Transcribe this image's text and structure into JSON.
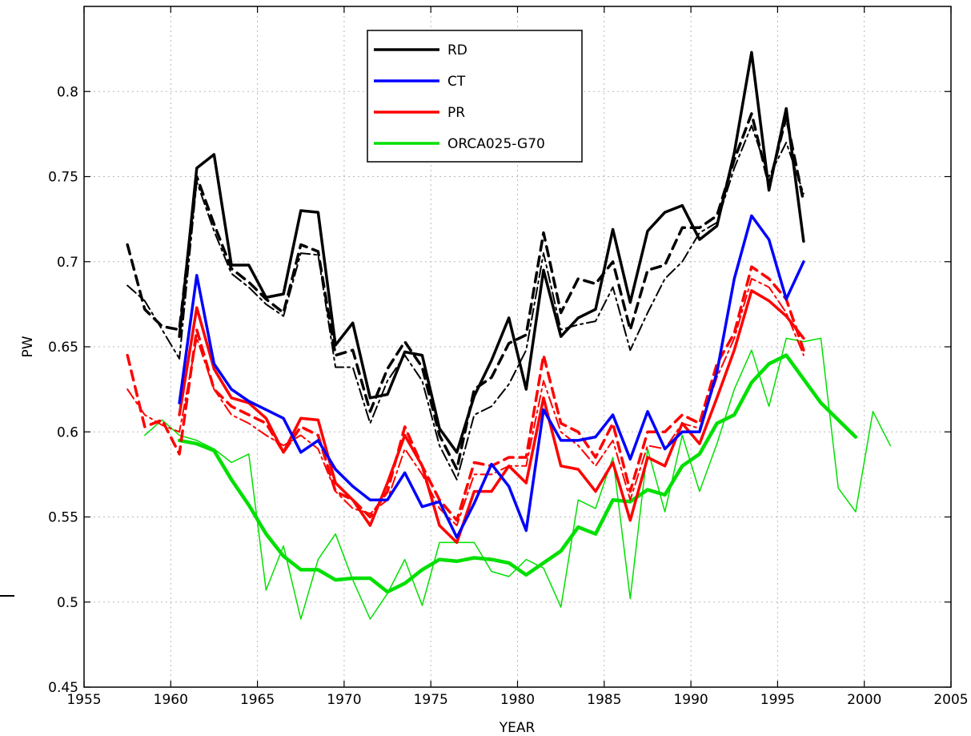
{
  "chart_data": {
    "type": "line",
    "title": "",
    "xlabel": "YEAR",
    "ylabel": "PW",
    "xlim": [
      1955,
      2005
    ],
    "ylim": [
      0.45,
      0.85
    ],
    "xticks": [
      1955,
      1960,
      1965,
      1970,
      1975,
      1980,
      1985,
      1990,
      1995,
      2000,
      2005
    ],
    "yticks": [
      0.45,
      0.5,
      0.55,
      0.6,
      0.65,
      0.7,
      0.75,
      0.8
    ],
    "xtick_labels": [
      "1955",
      "1960",
      "1965",
      "1970",
      "1975",
      "1980",
      "1985",
      "1990",
      "1995",
      "2000",
      "2005"
    ],
    "ytick_labels": [
      "0.45",
      "0.5",
      "0.55",
      "0.6",
      "0.65",
      "0.7",
      "0.75",
      "0.8"
    ],
    "grid": true,
    "legend_position": "top-center",
    "legend": [
      {
        "label": "RD",
        "color": "#000000"
      },
      {
        "label": "CT",
        "color": "#0000ff"
      },
      {
        "label": "PR",
        "color": "#ff0000"
      },
      {
        "label": "ORCA025-G70",
        "color": "#00e000"
      }
    ],
    "series": [
      {
        "name": "RD",
        "color": "#000000",
        "style": "solid",
        "width": 3.5,
        "x": [
          1960.5,
          1961.5,
          1962.5,
          1963.5,
          1964.5,
          1965.5,
          1966.5,
          1967.5,
          1968.5,
          1969.5,
          1970.5,
          1971.5,
          1972.5,
          1973.5,
          1974.5,
          1975.5,
          1976.5,
          1977.5,
          1978.5,
          1979.5,
          1980.5,
          1981.5,
          1982.5,
          1983.5,
          1984.5,
          1985.5,
          1986.5,
          1987.5,
          1988.5,
          1989.5,
          1990.5,
          1991.5,
          1992.5,
          1993.5,
          1994.5,
          1995.5,
          1996.5
        ],
        "y": [
          0.656,
          0.755,
          0.763,
          0.698,
          0.698,
          0.679,
          0.681,
          0.73,
          0.729,
          0.651,
          0.664,
          0.62,
          0.622,
          0.647,
          0.645,
          0.602,
          0.588,
          0.621,
          0.642,
          0.667,
          0.625,
          0.695,
          0.656,
          0.667,
          0.672,
          0.719,
          0.676,
          0.718,
          0.729,
          0.733,
          0.713,
          0.721,
          0.764,
          0.823,
          0.742,
          0.79,
          0.712
        ]
      },
      {
        "name": "",
        "color": "#000000",
        "style": "dashed",
        "width": 3.5,
        "x": [
          1957.5,
          1958.5,
          1959.5,
          1960.5,
          1961.5,
          1962.5,
          1963.5,
          1964.5,
          1965.5,
          1966.5,
          1967.5,
          1968.5,
          1969.5,
          1970.5,
          1971.5,
          1972.5,
          1973.5,
          1974.5,
          1975.5,
          1976.5,
          1977.5,
          1978.5,
          1979.5,
          1980.5,
          1981.5,
          1982.5,
          1983.5,
          1984.5,
          1985.5,
          1986.5,
          1987.5,
          1988.5,
          1989.5,
          1990.5,
          1991.5,
          1992.5,
          1993.5,
          1994.5,
          1995.5,
          1996.5
        ],
        "y": [
          0.71,
          0.672,
          0.662,
          0.66,
          0.75,
          0.722,
          0.696,
          0.688,
          0.678,
          0.67,
          0.71,
          0.706,
          0.645,
          0.648,
          0.612,
          0.637,
          0.653,
          0.638,
          0.598,
          0.578,
          0.625,
          0.632,
          0.652,
          0.657,
          0.717,
          0.67,
          0.69,
          0.687,
          0.7,
          0.66,
          0.695,
          0.698,
          0.72,
          0.72,
          0.727,
          0.76,
          0.787,
          0.745,
          0.785,
          0.735
        ]
      },
      {
        "name": "",
        "color": "#000000",
        "style": "dashdot",
        "width": 2,
        "x": [
          1957.5,
          1958.5,
          1959.5,
          1960.5,
          1961.5,
          1962.5,
          1963.5,
          1964.5,
          1965.5,
          1966.5,
          1967.5,
          1968.5,
          1969.5,
          1970.5,
          1971.5,
          1972.5,
          1973.5,
          1974.5,
          1975.5,
          1976.5,
          1977.5,
          1978.5,
          1979.5,
          1980.5,
          1981.5,
          1982.5,
          1983.5,
          1984.5,
          1985.5,
          1986.5,
          1987.5,
          1988.5,
          1989.5,
          1990.5,
          1991.5,
          1992.5,
          1993.5,
          1994.5,
          1995.5,
          1996.5
        ],
        "y": [
          0.686,
          0.677,
          0.66,
          0.643,
          0.747,
          0.718,
          0.693,
          0.685,
          0.675,
          0.668,
          0.705,
          0.704,
          0.638,
          0.638,
          0.605,
          0.63,
          0.645,
          0.63,
          0.592,
          0.572,
          0.61,
          0.615,
          0.628,
          0.648,
          0.705,
          0.66,
          0.663,
          0.665,
          0.685,
          0.648,
          0.67,
          0.69,
          0.7,
          0.717,
          0.723,
          0.755,
          0.78,
          0.75,
          0.77,
          0.74
        ]
      },
      {
        "name": "CT",
        "color": "#0000ff",
        "style": "solid",
        "width": 3.5,
        "x": [
          1960.5,
          1961.5,
          1962.5,
          1963.5,
          1964.5,
          1965.5,
          1966.5,
          1967.5,
          1968.5,
          1969.5,
          1970.5,
          1971.5,
          1972.5,
          1973.5,
          1974.5,
          1975.5,
          1976.5,
          1977.5,
          1978.5,
          1979.5,
          1980.5,
          1981.5,
          1982.5,
          1983.5,
          1984.5,
          1985.5,
          1986.5,
          1987.5,
          1988.5,
          1989.5,
          1990.5,
          1991.5,
          1992.5,
          1993.5,
          1994.5,
          1995.5,
          1996.5
        ],
        "y": [
          0.617,
          0.692,
          0.64,
          0.625,
          0.618,
          0.613,
          0.608,
          0.588,
          0.595,
          0.578,
          0.568,
          0.56,
          0.56,
          0.576,
          0.556,
          0.559,
          0.538,
          0.558,
          0.581,
          0.568,
          0.542,
          0.613,
          0.595,
          0.595,
          0.597,
          0.61,
          0.584,
          0.612,
          0.59,
          0.6,
          0.6,
          0.635,
          0.69,
          0.727,
          0.713,
          0.678,
          0.7
        ]
      },
      {
        "name": "PR",
        "color": "#ff0000",
        "style": "solid",
        "width": 3.5,
        "x": [
          1960.5,
          1961.5,
          1962.5,
          1963.5,
          1964.5,
          1965.5,
          1966.5,
          1967.5,
          1968.5,
          1969.5,
          1970.5,
          1971.5,
          1972.5,
          1973.5,
          1974.5,
          1975.5,
          1976.5,
          1977.5,
          1978.5,
          1979.5,
          1980.5,
          1981.5,
          1982.5,
          1983.5,
          1984.5,
          1985.5,
          1986.5,
          1987.5,
          1988.5,
          1989.5,
          1990.5,
          1991.5,
          1992.5,
          1993.5,
          1994.5,
          1995.5,
          1996.5
        ],
        "y": [
          0.61,
          0.673,
          0.637,
          0.62,
          0.617,
          0.608,
          0.588,
          0.608,
          0.607,
          0.57,
          0.56,
          0.545,
          0.57,
          0.598,
          0.58,
          0.545,
          0.535,
          0.565,
          0.565,
          0.58,
          0.57,
          0.62,
          0.58,
          0.578,
          0.565,
          0.582,
          0.548,
          0.585,
          0.58,
          0.605,
          0.593,
          0.62,
          0.648,
          0.683,
          0.677,
          0.668,
          0.655
        ]
      },
      {
        "name": "",
        "color": "#ff0000",
        "style": "dashed",
        "width": 3.5,
        "x": [
          1957.5,
          1958.5,
          1959.5,
          1960.5,
          1961.5,
          1962.5,
          1963.5,
          1964.5,
          1965.5,
          1966.5,
          1967.5,
          1968.5,
          1969.5,
          1970.5,
          1971.5,
          1972.5,
          1973.5,
          1974.5,
          1975.5,
          1976.5,
          1977.5,
          1978.5,
          1979.5,
          1980.5,
          1981.5,
          1982.5,
          1983.5,
          1984.5,
          1985.5,
          1986.5,
          1987.5,
          1988.5,
          1989.5,
          1990.5,
          1991.5,
          1992.5,
          1993.5,
          1994.5,
          1995.5,
          1996.5
        ],
        "y": [
          0.645,
          0.603,
          0.607,
          0.587,
          0.66,
          0.625,
          0.615,
          0.61,
          0.605,
          0.588,
          0.603,
          0.598,
          0.565,
          0.56,
          0.55,
          0.565,
          0.603,
          0.58,
          0.56,
          0.548,
          0.582,
          0.58,
          0.585,
          0.585,
          0.645,
          0.605,
          0.6,
          0.585,
          0.605,
          0.565,
          0.6,
          0.6,
          0.61,
          0.605,
          0.64,
          0.658,
          0.697,
          0.69,
          0.678,
          0.648
        ]
      },
      {
        "name": "",
        "color": "#ff0000",
        "style": "dashdot",
        "width": 2,
        "x": [
          1957.5,
          1958.5,
          1959.5,
          1960.5,
          1961.5,
          1962.5,
          1963.5,
          1964.5,
          1965.5,
          1966.5,
          1967.5,
          1968.5,
          1969.5,
          1970.5,
          1971.5,
          1972.5,
          1973.5,
          1974.5,
          1975.5,
          1976.5,
          1977.5,
          1978.5,
          1979.5,
          1980.5,
          1981.5,
          1982.5,
          1983.5,
          1984.5,
          1985.5,
          1986.5,
          1987.5,
          1988.5,
          1989.5,
          1990.5,
          1991.5,
          1992.5,
          1993.5,
          1994.5,
          1995.5,
          1996.5
        ],
        "y": [
          0.625,
          0.61,
          0.604,
          0.6,
          0.655,
          0.625,
          0.61,
          0.605,
          0.598,
          0.592,
          0.598,
          0.59,
          0.565,
          0.555,
          0.552,
          0.56,
          0.59,
          0.575,
          0.555,
          0.545,
          0.575,
          0.575,
          0.58,
          0.58,
          0.63,
          0.6,
          0.592,
          0.58,
          0.595,
          0.56,
          0.592,
          0.59,
          0.605,
          0.602,
          0.632,
          0.655,
          0.69,
          0.685,
          0.67,
          0.645
        ]
      },
      {
        "name": "ORCA025-G70",
        "color": "#00e000",
        "style": "solid",
        "width": 4.5,
        "x": [
          1960.5,
          1961.5,
          1962.5,
          1963.5,
          1964.5,
          1965.5,
          1966.5,
          1967.5,
          1968.5,
          1969.5,
          1970.5,
          1971.5,
          1972.5,
          1973.5,
          1974.5,
          1975.5,
          1976.5,
          1977.5,
          1978.5,
          1979.5,
          1980.5,
          1981.5,
          1982.5,
          1983.5,
          1984.5,
          1985.5,
          1986.5,
          1987.5,
          1988.5,
          1989.5,
          1990.5,
          1991.5,
          1992.5,
          1993.5,
          1994.5,
          1995.5,
          1996.5,
          1997.5,
          1998.5,
          1999.5
        ],
        "y": [
          0.595,
          0.593,
          0.589,
          0.572,
          0.557,
          0.54,
          0.527,
          0.519,
          0.519,
          0.513,
          0.514,
          0.514,
          0.506,
          0.511,
          0.519,
          0.525,
          0.524,
          0.526,
          0.525,
          0.523,
          0.516,
          0.523,
          0.53,
          0.544,
          0.54,
          0.56,
          0.559,
          0.566,
          0.563,
          0.58,
          0.587,
          0.605,
          0.61,
          0.629,
          0.64,
          0.645,
          0.631,
          0.617,
          0.607,
          0.597
        ]
      },
      {
        "name": "",
        "color": "#00e000",
        "style": "solid",
        "width": 1.5,
        "x": [
          1958.5,
          1959.5,
          1960.5,
          1961.5,
          1962.5,
          1963.5,
          1964.5,
          1965.5,
          1966.5,
          1967.5,
          1968.5,
          1969.5,
          1970.5,
          1971.5,
          1972.5,
          1973.5,
          1974.5,
          1975.5,
          1976.5,
          1977.5,
          1978.5,
          1979.5,
          1980.5,
          1981.5,
          1982.5,
          1983.5,
          1984.5,
          1985.5,
          1986.5,
          1987.5,
          1988.5,
          1989.5,
          1990.5,
          1991.5,
          1992.5,
          1993.5,
          1994.5,
          1995.5,
          1996.5,
          1997.5,
          1998.5,
          1999.5,
          2000.5,
          2001.5
        ],
        "y": [
          0.598,
          0.607,
          0.598,
          0.595,
          0.59,
          0.582,
          0.587,
          0.507,
          0.533,
          0.49,
          0.525,
          0.54,
          0.513,
          0.49,
          0.505,
          0.525,
          0.498,
          0.535,
          0.535,
          0.535,
          0.518,
          0.515,
          0.525,
          0.52,
          0.497,
          0.56,
          0.555,
          0.585,
          0.502,
          0.59,
          0.553,
          0.598,
          0.565,
          0.593,
          0.625,
          0.648,
          0.615,
          0.655,
          0.653,
          0.655,
          0.567,
          0.553,
          0.612,
          0.592
        ]
      }
    ]
  }
}
